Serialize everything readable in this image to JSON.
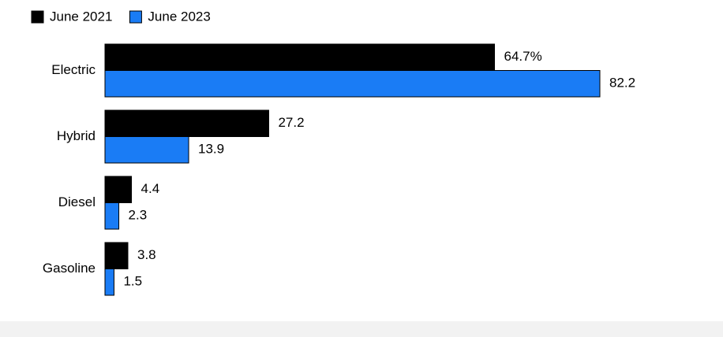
{
  "chart_data": {
    "type": "bar",
    "orientation": "horizontal",
    "categories": [
      "Electric",
      "Hybrid",
      "Diesel",
      "Gasoline"
    ],
    "series": [
      {
        "name": "June 2021",
        "color": "#000000",
        "values": [
          64.7,
          27.2,
          4.4,
          3.8
        ],
        "value_labels": [
          "64.7%",
          "27.2",
          "4.4",
          "3.8"
        ]
      },
      {
        "name": "June 2023",
        "color": "#1a7cf5",
        "values": [
          82.2,
          13.9,
          2.3,
          1.5
        ]
      }
    ]
  }
}
